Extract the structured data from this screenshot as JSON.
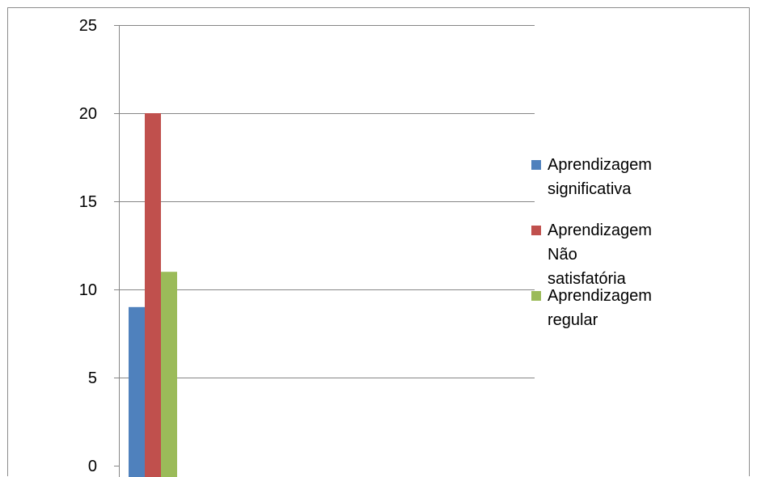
{
  "chart_data": {
    "type": "bar",
    "categories": [
      ""
    ],
    "series": [
      {
        "name": "Aprendizagem significativa",
        "values": [
          9
        ],
        "color": "#4f81bd"
      },
      {
        "name": "Aprendizagem  Não satisfatória",
        "values": [
          20
        ],
        "color": "#c0504d"
      },
      {
        "name": "Aprendizagem regular",
        "values": [
          11
        ],
        "color": "#9bbb59"
      }
    ],
    "title": "",
    "xlabel": "",
    "ylabel": "",
    "ylim": [
      0,
      25
    ],
    "yticks": [
      "0",
      "5",
      "10",
      "15",
      "20",
      "25"
    ],
    "grid": true,
    "legend_position": "right",
    "legend": [
      {
        "label_line1": "Aprendizagem",
        "label_line2": "significativa"
      },
      {
        "label_line1": "Aprendizagem  Não",
        "label_line2": "satisfatória"
      },
      {
        "label_line1": "Aprendizagem regular",
        "label_line2": ""
      }
    ]
  }
}
